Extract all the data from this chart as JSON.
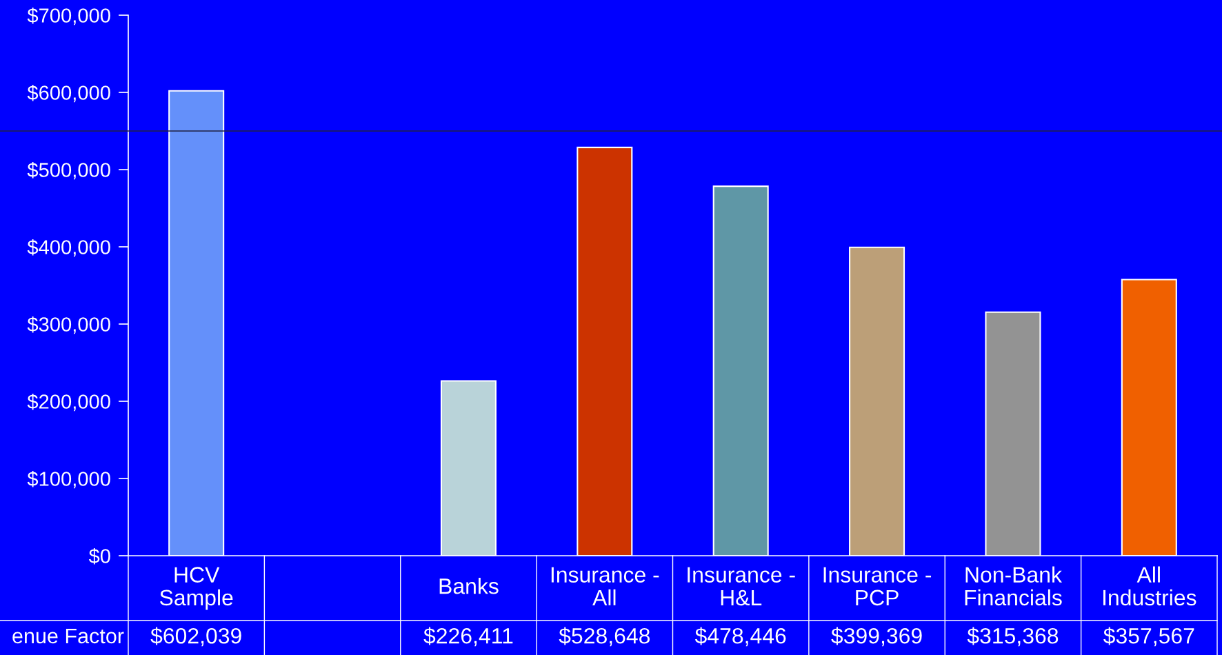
{
  "chart_data": {
    "type": "bar",
    "categories": [
      "HCV\nSample",
      null,
      "Banks",
      "Insurance -\nAll",
      "Insurance -\nH&L",
      "Insurance -\nPCP",
      "Non-Bank\nFinancials",
      "All\nIndustries"
    ],
    "series": [
      {
        "name": "enue Factor",
        "colors": [
          "#6490fa",
          null,
          "#b9d3d9",
          "#cc3300",
          "#5f97a6",
          "#bc9f78",
          "#939393",
          "#f06000"
        ],
        "values": [
          602039,
          null,
          226411,
          528648,
          478446,
          399369,
          315368,
          357567
        ],
        "value_labels": [
          "$602,039",
          null,
          "$226,411",
          "$528,648",
          "$478,446",
          "$399,369",
          "$315,368",
          "$357,567"
        ]
      }
    ],
    "ylim": [
      0,
      700000
    ],
    "yticks": [
      {
        "value": 0,
        "label": "$0"
      },
      {
        "value": 100000,
        "label": "$100,000"
      },
      {
        "value": 200000,
        "label": "$200,000"
      },
      {
        "value": 300000,
        "label": "$300,000"
      },
      {
        "value": 400000,
        "label": "$400,000"
      },
      {
        "value": 500000,
        "label": "$500,000"
      },
      {
        "value": 600000,
        "label": "$600,000"
      },
      {
        "value": 700000,
        "label": "$700,000"
      }
    ],
    "ref_lines": [
      {
        "axis": "y",
        "value": 550000,
        "color": "#202040"
      }
    ]
  }
}
